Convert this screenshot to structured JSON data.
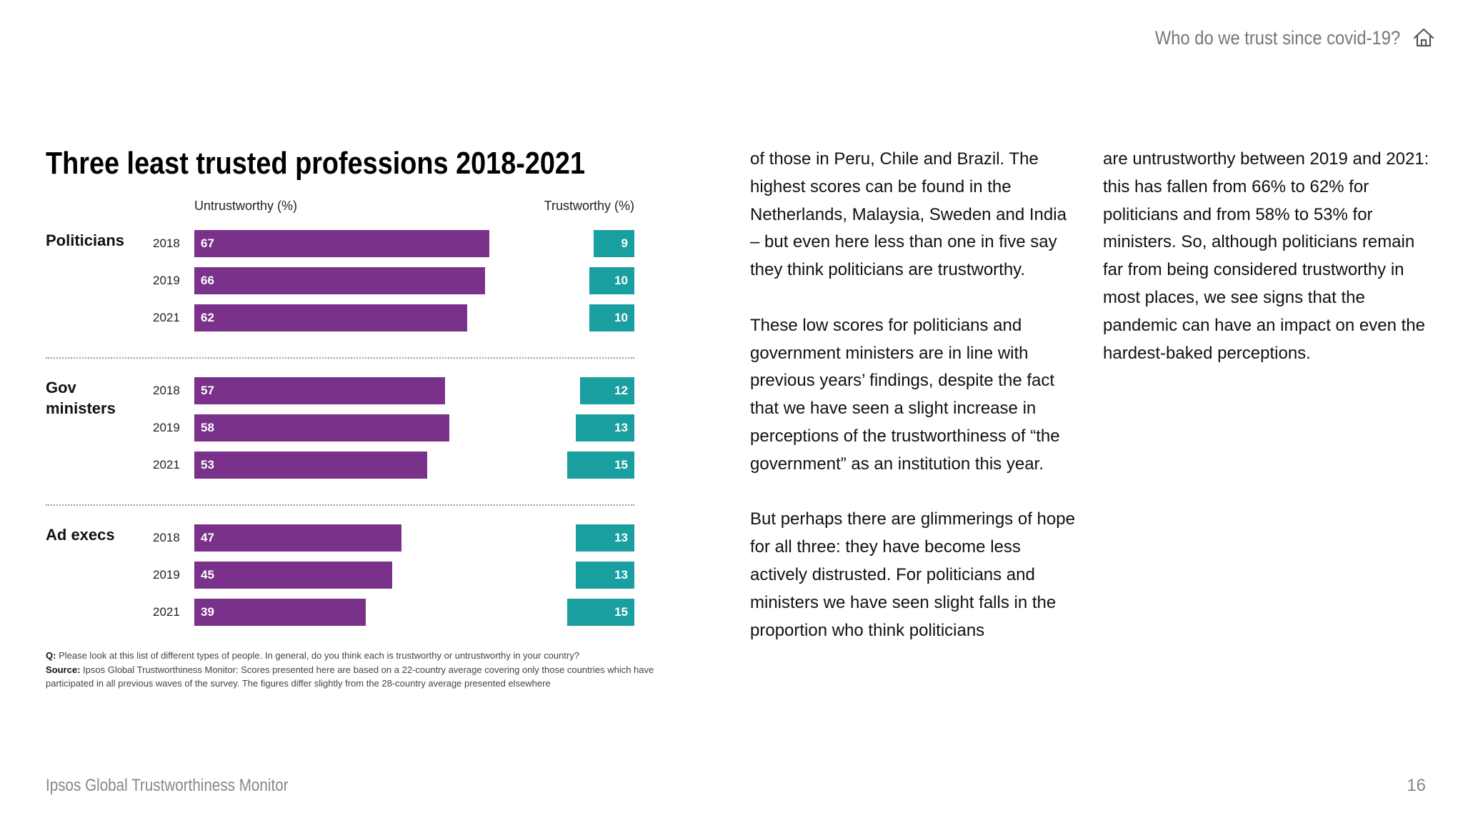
{
  "header": {
    "title": "Who do we trust since covid-19?",
    "home_icon": "home-icon"
  },
  "chart_data": {
    "type": "bar",
    "title": "Three least trusted professions 2018-2021",
    "orientation": "horizontal",
    "layout": "diverging",
    "series": [
      {
        "name": "Untrustworthy (%)",
        "color": "#793189"
      },
      {
        "name": "Trustworthy (%)",
        "color": "#1a9fa0"
      }
    ],
    "groups": [
      {
        "name": "Politicians",
        "rows": [
          {
            "year": "2018",
            "untrustworthy": 67,
            "trustworthy": 9
          },
          {
            "year": "2019",
            "untrustworthy": 66,
            "trustworthy": 10
          },
          {
            "year": "2021",
            "untrustworthy": 62,
            "trustworthy": 10
          }
        ]
      },
      {
        "name": "Gov ministers",
        "rows": [
          {
            "year": "2018",
            "untrustworthy": 57,
            "trustworthy": 12
          },
          {
            "year": "2019",
            "untrustworthy": 58,
            "trustworthy": 13
          },
          {
            "year": "2021",
            "untrustworthy": 53,
            "trustworthy": 15
          }
        ]
      },
      {
        "name": "Ad execs",
        "rows": [
          {
            "year": "2018",
            "untrustworthy": 47,
            "trustworthy": 13
          },
          {
            "year": "2019",
            "untrustworthy": 45,
            "trustworthy": 13
          },
          {
            "year": "2021",
            "untrustworthy": 39,
            "trustworthy": 15
          }
        ]
      }
    ]
  },
  "notes": {
    "q_label": "Q:",
    "q_text": " Please look at this list of different types of people. In general, do you think each is trustworthy or untrustworthy in your country?",
    "source_label": "Source:",
    "source_text": " Ipsos Global Trustworthiness Monitor: Scores presented here are based on a 22-country average covering only those countries which have participated in all previous waves of the survey. The figures differ slightly from the 28-country average presented elsewhere"
  },
  "body_text": {
    "col1": [
      "of those in Peru, Chile and Brazil. The highest scores can be found in the Netherlands, Malaysia, Sweden and India – but even here less than one in five say they think politicians are trustworthy.",
      "These low scores for politicians and government ministers are in line with previous years’ findings, despite the fact that we have seen a slight increase in perceptions of the trustworthiness of “the government” as an institution this year.",
      "But perhaps there are glimmerings of hope for all three: they have become less actively distrusted. For politicians and ministers we have seen slight falls in the proportion who think politicians"
    ],
    "col2": [
      "are untrustworthy between 2019 and 2021: this has fallen from 66% to 62% for politicians and from 58% to 53% for ministers. So, although politicians remain far from being considered trustworthy in most places, we see signs that the pandemic can have an impact on even the hardest-baked perceptions."
    ]
  },
  "footer": {
    "publication": "Ipsos Global Trustworthiness Monitor",
    "page_number": "16"
  }
}
